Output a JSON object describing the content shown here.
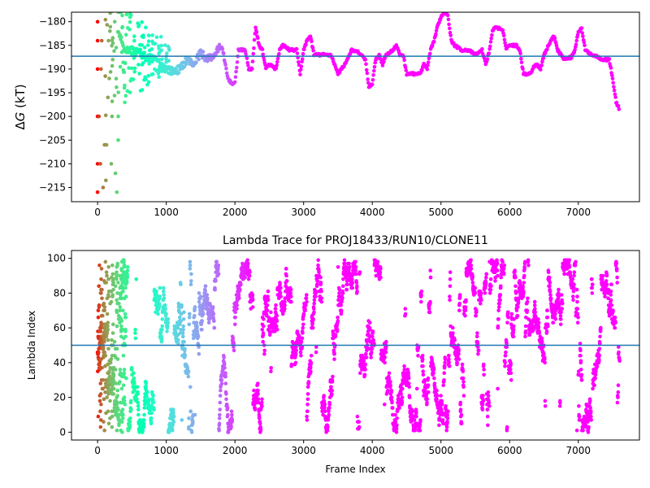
{
  "chart_data": [
    {
      "type": "scatter",
      "title": "",
      "xlabel": "",
      "ylabel_prefix": "Δ",
      "ylabel_var": "G",
      "ylabel_suffix": " (kT)",
      "xlim": [
        -380,
        7890
      ],
      "ylim": [
        -218,
        -178
      ],
      "xticks": [
        0,
        1000,
        2000,
        3000,
        4000,
        5000,
        6000,
        7000
      ],
      "xtick_labels": [
        "0",
        "1000",
        "2000",
        "3000",
        "4000",
        "5000",
        "6000",
        "7000"
      ],
      "yticks": [
        -215,
        -210,
        -205,
        -200,
        -195,
        -190,
        -185,
        -180
      ],
      "ytick_labels": [
        "−215",
        "−210",
        "−205",
        "−200",
        "−195",
        "−190",
        "−185",
        "−180"
      ],
      "hline": {
        "y": -187.3,
        "color": "#1f77b4"
      },
      "colormap": "rainbow (red at frame 0 → violet at late frames)",
      "trace_knots": [
        [
          300,
          -182
        ],
        [
          400,
          -186
        ],
        [
          550,
          -186
        ],
        [
          700,
          -187.5
        ],
        [
          850,
          -188
        ],
        [
          1000,
          -190
        ],
        [
          1100,
          -190.5
        ],
        [
          1200,
          -190
        ],
        [
          1300,
          -188
        ],
        [
          1400,
          -189
        ],
        [
          1500,
          -186.5
        ],
        [
          1600,
          -188
        ],
        [
          1700,
          -187
        ],
        [
          1800,
          -185
        ],
        [
          1900,
          -192
        ],
        [
          1950,
          -193
        ],
        [
          2000,
          -193
        ],
        [
          2050,
          -186
        ],
        [
          2150,
          -186
        ],
        [
          2200,
          -190
        ],
        [
          2250,
          -190
        ],
        [
          2300,
          -181
        ],
        [
          2350,
          -185
        ],
        [
          2400,
          -186
        ],
        [
          2450,
          -190
        ],
        [
          2500,
          -189
        ],
        [
          2600,
          -190
        ],
        [
          2650,
          -186
        ],
        [
          2700,
          -185
        ],
        [
          2800,
          -186
        ],
        [
          2900,
          -186
        ],
        [
          2950,
          -191
        ],
        [
          3000,
          -186
        ],
        [
          3050,
          -184
        ],
        [
          3100,
          -183
        ],
        [
          3150,
          -187
        ],
        [
          3200,
          -187
        ],
        [
          3300,
          -187
        ],
        [
          3400,
          -187
        ],
        [
          3450,
          -189
        ],
        [
          3500,
          -191
        ],
        [
          3600,
          -189
        ],
        [
          3700,
          -186
        ],
        [
          3800,
          -186.5
        ],
        [
          3900,
          -188
        ],
        [
          3950,
          -194
        ],
        [
          4000,
          -193
        ],
        [
          4050,
          -188
        ],
        [
          4100,
          -187
        ],
        [
          4150,
          -189
        ],
        [
          4200,
          -187
        ],
        [
          4300,
          -186
        ],
        [
          4350,
          -185
        ],
        [
          4400,
          -187
        ],
        [
          4450,
          -187
        ],
        [
          4500,
          -191
        ],
        [
          4600,
          -191
        ],
        [
          4700,
          -191
        ],
        [
          4750,
          -189
        ],
        [
          4800,
          -190
        ],
        [
          4850,
          -186
        ],
        [
          4900,
          -184
        ],
        [
          4950,
          -181
        ],
        [
          5000,
          -179
        ],
        [
          5050,
          -178
        ],
        [
          5100,
          -178.5
        ],
        [
          5150,
          -184
        ],
        [
          5200,
          -185
        ],
        [
          5300,
          -186
        ],
        [
          5400,
          -186
        ],
        [
          5500,
          -187
        ],
        [
          5600,
          -186
        ],
        [
          5650,
          -189
        ],
        [
          5700,
          -186.5
        ],
        [
          5750,
          -182
        ],
        [
          5800,
          -181
        ],
        [
          5900,
          -182
        ],
        [
          5950,
          -185.5
        ],
        [
          6000,
          -185
        ],
        [
          6100,
          -185
        ],
        [
          6150,
          -186
        ],
        [
          6200,
          -191
        ],
        [
          6300,
          -191
        ],
        [
          6350,
          -189.5
        ],
        [
          6400,
          -189
        ],
        [
          6450,
          -190
        ],
        [
          6500,
          -187
        ],
        [
          6600,
          -184
        ],
        [
          6650,
          -183
        ],
        [
          6700,
          -186
        ],
        [
          6750,
          -187
        ],
        [
          6800,
          -188
        ],
        [
          6900,
          -187.5
        ],
        [
          6950,
          -186
        ],
        [
          7000,
          -182
        ],
        [
          7050,
          -181.5
        ],
        [
          7100,
          -186
        ],
        [
          7200,
          -187
        ],
        [
          7300,
          -187.5
        ],
        [
          7350,
          -188
        ],
        [
          7450,
          -188
        ],
        [
          7500,
          -192
        ],
        [
          7550,
          -197
        ],
        [
          7600,
          -198.5
        ]
      ],
      "early_points": [
        [
          0,
          -180
        ],
        [
          0,
          -184
        ],
        [
          0,
          -190
        ],
        [
          0,
          -200
        ],
        [
          0,
          -210
        ],
        [
          0,
          -216
        ],
        [
          20,
          -200
        ],
        [
          40,
          -210
        ],
        [
          50,
          -190
        ],
        [
          60,
          -184
        ],
        [
          80,
          -215
        ],
        [
          100,
          -206
        ],
        [
          120,
          -213.5
        ],
        [
          130,
          -206
        ],
        [
          150,
          -196
        ],
        [
          160,
          -184
        ],
        [
          170,
          -192
        ],
        [
          180,
          -182
        ],
        [
          200,
          -210
        ],
        [
          210,
          -200
        ],
        [
          220,
          -188
        ],
        [
          250,
          -180
        ],
        [
          260,
          -212
        ],
        [
          280,
          -216
        ],
        [
          300,
          -205
        ],
        [
          300,
          -200
        ]
      ]
    },
    {
      "type": "scatter",
      "title": "Lambda Trace for PROJ18433/RUN10/CLONE11",
      "xlabel": "Frame Index",
      "ylabel": "Lambda Index",
      "xlim": [
        -380,
        7890
      ],
      "ylim": [
        -4.5,
        104.5
      ],
      "xticks": [
        0,
        1000,
        2000,
        3000,
        4000,
        5000,
        6000,
        7000
      ],
      "xtick_labels": [
        "0",
        "1000",
        "2000",
        "3000",
        "4000",
        "5000",
        "6000",
        "7000"
      ],
      "yticks": [
        0,
        20,
        40,
        60,
        80,
        100
      ],
      "ytick_labels": [
        "0",
        "20",
        "40",
        "60",
        "80",
        "100"
      ],
      "hline": {
        "y": 50,
        "color": "#1f77b4"
      },
      "colormap": "rainbow (red at frame 0 → violet at late frames)",
      "frames": {
        "first": 0,
        "last": 7600
      },
      "lambda_range": [
        0,
        99
      ]
    }
  ]
}
